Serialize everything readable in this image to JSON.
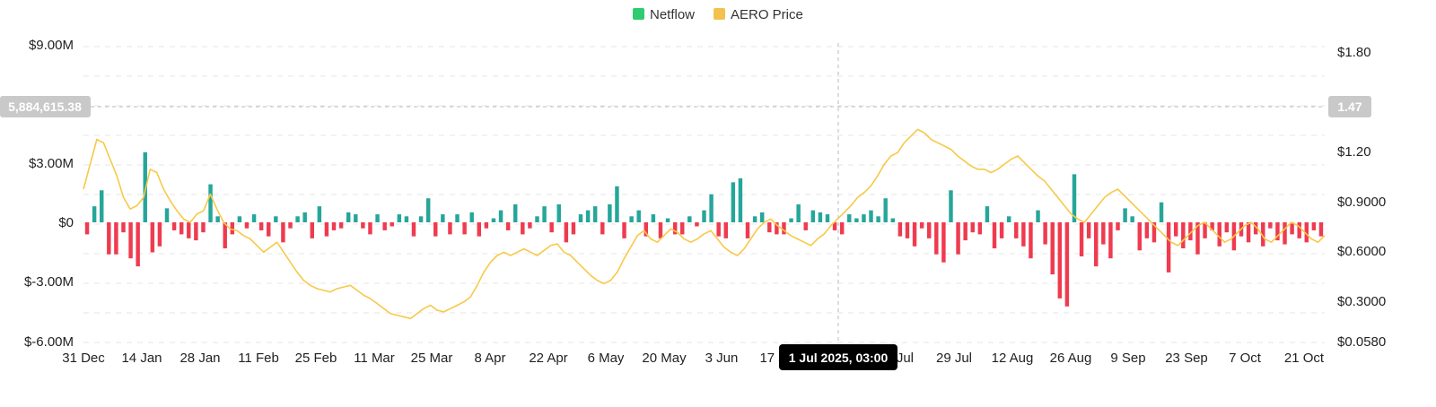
{
  "chart_data": {
    "type": "bar+line",
    "title": "",
    "legend": {
      "placement": "top-center",
      "items": [
        {
          "label": "Netflow",
          "color": "#2ECC71"
        },
        {
          "label": "AERO Price",
          "color": "#F2C14E"
        }
      ]
    },
    "colors": {
      "positive_bar": "#26A69A",
      "negative_bar": "#EF3B4F",
      "price_line": "#F7C948",
      "grid": "#E6E6E6",
      "crosshair": "#BBBBBB",
      "badge": "#C9C9C9",
      "tooltip": "#000000"
    },
    "x_ticks": [
      "31 Dec",
      "14 Jan",
      "28 Jan",
      "11 Feb",
      "25 Feb",
      "11 Mar",
      "25 Mar",
      "8 Apr",
      "22 Apr",
      "6 May",
      "20 May",
      "3 Jun",
      "17 Jun",
      "1 Jul",
      "15 Jul",
      "29 Jul",
      "12 Aug",
      "26 Aug",
      "9 Sep",
      "23 Sep",
      "7 Oct",
      "21 Oct"
    ],
    "y_left": {
      "ticks": [
        "$9.00M",
        "$3.00M",
        "$0",
        "$-3.00M",
        "$-6.00M"
      ],
      "values": [
        9000000,
        3000000,
        0,
        -3000000,
        -6000000
      ],
      "range": [
        -6000000,
        9000000
      ]
    },
    "y_right": {
      "ticks": [
        "$1.80",
        "$1.20",
        "$0.9000",
        "$0.6000",
        "$0.3000",
        "$0.0580"
      ],
      "values": [
        1.8,
        1.2,
        0.9,
        0.6,
        0.3,
        0.058
      ]
    },
    "crosshair": {
      "date_label": "1 Jul 2025, 03:00",
      "left_value_label": "5,884,615.38",
      "right_value_label": "1.47",
      "x_index": 182
    },
    "netflow_weekly_M": [
      -0.6,
      0.8,
      1.6,
      -1.6,
      -1.6,
      -0.5,
      -1.8,
      -2.2,
      3.5,
      -1.5,
      -1.2,
      0.7,
      -0.4,
      -0.6,
      -0.8,
      -0.9,
      -0.5,
      1.9,
      0.3,
      -1.3,
      -0.6,
      0.3,
      -0.3,
      0.4,
      -0.4,
      -0.7,
      0.3,
      -1.0,
      -0.3,
      0.3,
      0.5,
      -0.8,
      0.8,
      -0.7,
      -0.4,
      -0.3,
      0.5,
      0.4,
      -0.3,
      -0.6,
      0.4,
      -0.4,
      -0.2,
      0.4,
      0.3,
      -0.7,
      0.3,
      1.2,
      -0.7,
      0.4,
      -0.6,
      0.4,
      -0.6,
      0.5,
      -0.7,
      -0.3,
      0.2,
      0.6,
      -0.4,
      0.9,
      -0.6,
      -0.3,
      0.3,
      0.8,
      -0.5,
      0.9,
      -1.0,
      -0.6,
      0.4,
      0.6,
      0.8,
      -0.6,
      0.9,
      1.8,
      -0.8,
      0.3,
      0.6,
      -0.7,
      0.4,
      -0.8,
      0.2,
      -0.6,
      -0.6,
      0.3,
      -0.2,
      0.6,
      1.4,
      -0.7,
      -0.8,
      2.0,
      2.2,
      -0.8,
      0.3,
      0.5,
      -0.5,
      -0.6,
      -0.6,
      0.2,
      0.9,
      -0.4,
      0.6,
      0.5,
      0.4,
      -0.4,
      -0.6,
      0.4,
      0.2,
      0.4,
      0.6,
      0.3,
      1.2,
      0.2,
      -0.7,
      -0.8,
      -1.2,
      -0.3,
      -0.8,
      -1.6,
      -2.0,
      1.6,
      -1.6,
      -0.9,
      -0.5,
      -0.6,
      0.8,
      -1.3,
      -0.8,
      0.3,
      -0.8,
      -1.2,
      -1.8,
      0.6,
      -1.1,
      -2.6,
      -3.8,
      -4.2,
      2.4,
      -1.7,
      -0.8,
      -2.2,
      -1.1,
      -1.8,
      -0.4,
      0.7,
      0.3,
      -1.4,
      -0.8,
      -1.0,
      1.0,
      -2.5,
      -0.7,
      -1.3,
      -0.9,
      -1.6,
      -0.8,
      -0.4,
      -1.2,
      -0.5,
      -1.4,
      -0.7,
      -1.0,
      -0.6,
      -1.2,
      -0.3,
      -0.9,
      -1.1,
      -0.6,
      -0.8,
      -1.0,
      -0.4,
      -0.7
    ],
    "aero_price": [
      1.1,
      1.25,
      1.4,
      1.38,
      1.28,
      1.18,
      1.05,
      0.98,
      1.0,
      1.05,
      1.22,
      1.2,
      1.1,
      1.03,
      0.97,
      0.92,
      0.9,
      0.95,
      0.97,
      1.07,
      0.98,
      0.9,
      0.86,
      0.85,
      0.82,
      0.8,
      0.76,
      0.72,
      0.75,
      0.78,
      0.72,
      0.66,
      0.6,
      0.55,
      0.52,
      0.5,
      0.49,
      0.48,
      0.5,
      0.51,
      0.52,
      0.49,
      0.46,
      0.44,
      0.41,
      0.38,
      0.35,
      0.34,
      0.33,
      0.32,
      0.35,
      0.38,
      0.4,
      0.37,
      0.36,
      0.38,
      0.4,
      0.42,
      0.45,
      0.52,
      0.6,
      0.66,
      0.7,
      0.72,
      0.7,
      0.72,
      0.74,
      0.72,
      0.7,
      0.73,
      0.76,
      0.77,
      0.72,
      0.7,
      0.66,
      0.62,
      0.58,
      0.55,
      0.53,
      0.55,
      0.6,
      0.68,
      0.75,
      0.82,
      0.85,
      0.8,
      0.78,
      0.82,
      0.86,
      0.84,
      0.8,
      0.78,
      0.8,
      0.83,
      0.85,
      0.8,
      0.75,
      0.72,
      0.7,
      0.74,
      0.8,
      0.86,
      0.9,
      0.92,
      0.88,
      0.85,
      0.82,
      0.8,
      0.78,
      0.76,
      0.8,
      0.83,
      0.88,
      0.92,
      0.96,
      1.0,
      1.05,
      1.08,
      1.12,
      1.18,
      1.25,
      1.3,
      1.32,
      1.38,
      1.42,
      1.46,
      1.44,
      1.4,
      1.38,
      1.36,
      1.34,
      1.3,
      1.27,
      1.24,
      1.22,
      1.22,
      1.2,
      1.22,
      1.25,
      1.28,
      1.3,
      1.26,
      1.22,
      1.18,
      1.15,
      1.1,
      1.05,
      1.0,
      0.95,
      0.92,
      0.9,
      0.95,
      1.0,
      1.05,
      1.08,
      1.1,
      1.06,
      1.02,
      0.98,
      0.94,
      0.9,
      0.86,
      0.82,
      0.78,
      0.76,
      0.8,
      0.84,
      0.88,
      0.9,
      0.86,
      0.82,
      0.78,
      0.8,
      0.84,
      0.88,
      0.9,
      0.86,
      0.8,
      0.78,
      0.82,
      0.86,
      0.9,
      0.88,
      0.84,
      0.8,
      0.78,
      0.82
    ]
  }
}
